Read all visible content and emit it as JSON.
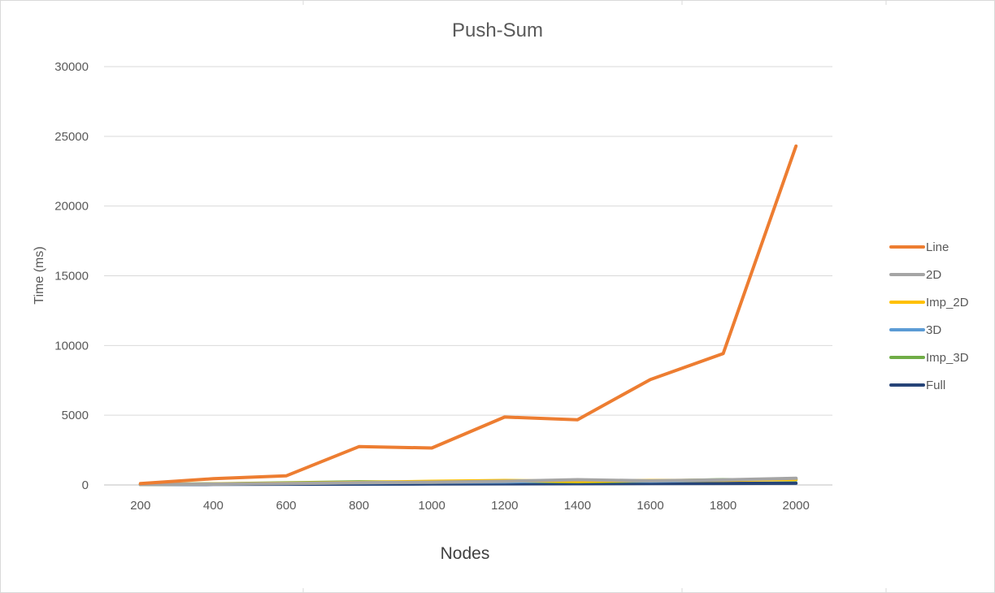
{
  "chart_data": {
    "type": "line",
    "title": "Push-Sum",
    "xlabel": "Nodes",
    "ylabel": "Time (ms)",
    "categories": [
      "200",
      "400",
      "600",
      "800",
      "1000",
      "1200",
      "1400",
      "1600",
      "1800",
      "2000"
    ],
    "ylim": [
      0,
      30000
    ],
    "yticks": [
      0,
      5000,
      10000,
      15000,
      20000,
      25000,
      30000
    ],
    "grid": true,
    "legend_position": "right",
    "series": [
      {
        "name": "Line",
        "color": "#ED7D31",
        "values": [
          100,
          450,
          650,
          2750,
          2650,
          4870,
          4680,
          7560,
          9420,
          24300
        ]
      },
      {
        "name": "2D",
        "color": "#A5A5A5",
        "values": [
          40,
          60,
          100,
          160,
          200,
          260,
          380,
          300,
          360,
          480
        ]
      },
      {
        "name": "Imp_2D",
        "color": "#FFC000",
        "values": [
          40,
          70,
          120,
          180,
          260,
          320,
          260,
          320,
          340,
          400
        ]
      },
      {
        "name": "3D",
        "color": "#5B9BD5",
        "values": [
          30,
          60,
          110,
          150,
          190,
          210,
          310,
          260,
          330,
          460
        ]
      },
      {
        "name": "Imp_3D",
        "color": "#70AD47",
        "values": [
          40,
          80,
          150,
          230,
          200,
          240,
          230,
          280,
          380,
          360
        ]
      },
      {
        "name": "Full",
        "color": "#264478",
        "values": [
          30,
          40,
          50,
          60,
          70,
          80,
          90,
          100,
          110,
          120
        ]
      }
    ]
  }
}
